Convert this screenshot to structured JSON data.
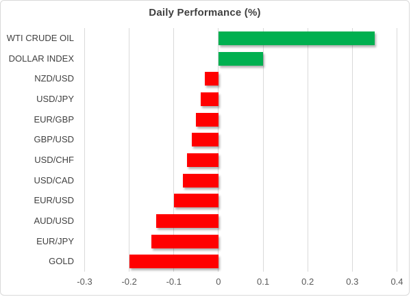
{
  "chart_data": {
    "type": "bar",
    "orientation": "horizontal",
    "title": "Daily Performance (%)",
    "categories": [
      "WTI CRUDE OIL",
      "DOLLAR INDEX",
      "NZD/USD",
      "USD/JPY",
      "EUR/GBP",
      "GBP/USD",
      "USD/CHF",
      "USD/CAD",
      "EUR/USD",
      "AUD/USD",
      "EUR/JPY",
      "GOLD"
    ],
    "values": [
      0.35,
      0.1,
      -0.03,
      -0.04,
      -0.05,
      -0.06,
      -0.07,
      -0.08,
      -0.1,
      -0.14,
      -0.15,
      -0.2
    ],
    "xlabel": "",
    "ylabel": "",
    "xlim": [
      -0.3,
      0.4
    ],
    "x_ticks": [
      {
        "value": -0.3,
        "label": "-0.3"
      },
      {
        "value": -0.2,
        "label": "-0.2"
      },
      {
        "value": -0.1,
        "label": "-0.1"
      },
      {
        "value": 0,
        "label": "0"
      },
      {
        "value": 0.1,
        "label": "0.1"
      },
      {
        "value": 0.2,
        "label": "0.2"
      },
      {
        "value": 0.3,
        "label": "0.3"
      },
      {
        "value": 0.4,
        "label": "0.4"
      }
    ],
    "grid": true,
    "legend": "none",
    "positive_color": "#00B050",
    "negative_color": "#FF0000"
  }
}
